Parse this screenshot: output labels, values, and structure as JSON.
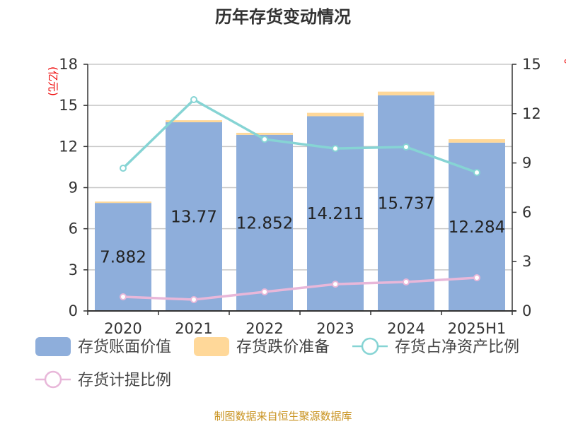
{
  "chart_data": {
    "type": "bar",
    "title": "历年存货变动情况",
    "ylabel": "(亿元)",
    "ylabel_right": "%",
    "categories": [
      "2020",
      "2021",
      "2022",
      "2023",
      "2024",
      "2025H1"
    ],
    "ylim": [
      0,
      18
    ],
    "yticks": [
      0,
      3,
      6,
      9,
      12,
      15,
      18
    ],
    "ylim_right": [
      0,
      15
    ],
    "yticks_right": [
      0,
      3,
      6,
      9,
      12,
      15
    ],
    "grid": true,
    "legend_placement": "bottom",
    "stacked": true,
    "series": [
      {
        "name": "存货账面价值",
        "kind": "bar",
        "axis": "left",
        "color": "#8eaedb",
        "values": [
          7.882,
          13.77,
          12.852,
          14.211,
          15.737,
          12.284
        ],
        "labels": [
          "7.882",
          "13.77",
          "12.852",
          "14.211",
          "15.737",
          "12.284"
        ]
      },
      {
        "name": "存货跌价准备",
        "kind": "bar",
        "axis": "left",
        "color": "#ffd899",
        "values": [
          0.1,
          0.15,
          0.15,
          0.25,
          0.27,
          0.25
        ]
      },
      {
        "name": "存货占净资产比例",
        "kind": "line",
        "axis": "right",
        "color": "#86d4d4",
        "values": [
          8.68,
          12.85,
          10.44,
          9.88,
          9.97,
          8.42
        ]
      },
      {
        "name": "存货计提比例",
        "kind": "line",
        "axis": "right",
        "color": "#e8b7d9",
        "values": [
          0.86,
          0.69,
          1.16,
          1.63,
          1.76,
          2.02
        ]
      }
    ]
  },
  "source": "制图数据来自恒生聚源数据库"
}
